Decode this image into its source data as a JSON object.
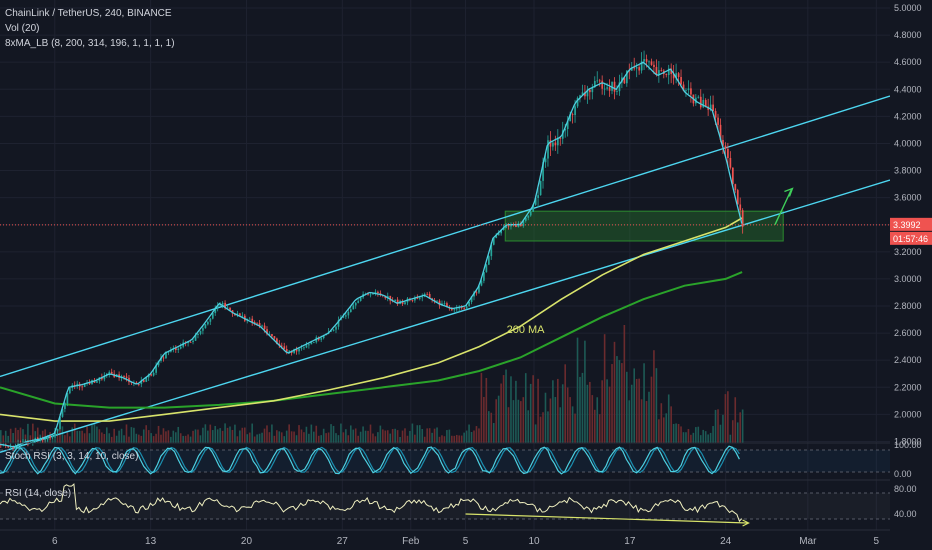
{
  "legend": {
    "main": "ChainLink / TetherUS, 240, BINANCE",
    "vol": "Vol (20)",
    "ma": "8xMA_LB (8, 200, 314, 196, 1, 1, 1, 1)",
    "stoch": "Stoch RSI (3, 3, 14, 10, close)",
    "rsi": "RSI (14, close)"
  },
  "price_badge": {
    "price": "3.3992",
    "countdown": "01:57:46"
  },
  "annotation": "200 MA",
  "colors": {
    "background": "#131722",
    "up": "#26a69a",
    "down": "#ef5350",
    "fast_ma": "#4dd0e1",
    "ma200": "#d8e36b",
    "ma314": "#2aa32a",
    "channel": "#4dd6f0",
    "zone": "#2b8a2f",
    "stoch_k": "#4dd0e1",
    "stoch_d": "#1a8fb0",
    "rsi": "#f0f0c0",
    "rsi_div": "#d8e36b",
    "arrow": "#3fcf5a",
    "price_line": "#ef5350"
  },
  "chart_data": {
    "type": "candlestick",
    "price_axis": {
      "range": [
        1.7,
        5.0
      ],
      "ticks": [
        "5.0000",
        "4.8000",
        "4.6000",
        "4.4000",
        "4.2000",
        "4.0000",
        "3.8000",
        "3.6000",
        "3.4000",
        "3.2000",
        "3.0000",
        "2.8000",
        "2.6000",
        "2.4000",
        "2.2000",
        "2.0000",
        "1.8000"
      ]
    },
    "time_axis": {
      "labels": [
        "6",
        "13",
        "20",
        "27",
        "Feb",
        "5",
        "10",
        "17",
        "24",
        "Mar",
        "5"
      ],
      "label_days": [
        6,
        13,
        20,
        27,
        32,
        36,
        41,
        48,
        55,
        61,
        66
      ],
      "range_days": [
        2,
        67
      ]
    },
    "close_path": [
      [
        2,
        1.78
      ],
      [
        3,
        1.76
      ],
      [
        4,
        1.8
      ],
      [
        5,
        1.82
      ],
      [
        6,
        1.86
      ],
      [
        7,
        2.2
      ],
      [
        8,
        2.22
      ],
      [
        9,
        2.25
      ],
      [
        10,
        2.3
      ],
      [
        11,
        2.27
      ],
      [
        12,
        2.22
      ],
      [
        13,
        2.3
      ],
      [
        14,
        2.45
      ],
      [
        15,
        2.5
      ],
      [
        16,
        2.55
      ],
      [
        17,
        2.68
      ],
      [
        18,
        2.82
      ],
      [
        19,
        2.75
      ],
      [
        20,
        2.7
      ],
      [
        21,
        2.65
      ],
      [
        22,
        2.55
      ],
      [
        23,
        2.45
      ],
      [
        24,
        2.5
      ],
      [
        25,
        2.55
      ],
      [
        26,
        2.6
      ],
      [
        27,
        2.72
      ],
      [
        28,
        2.85
      ],
      [
        29,
        2.9
      ],
      [
        30,
        2.88
      ],
      [
        31,
        2.82
      ],
      [
        32,
        2.85
      ],
      [
        33,
        2.88
      ],
      [
        34,
        2.82
      ],
      [
        35,
        2.78
      ],
      [
        36,
        2.8
      ],
      [
        37,
        2.95
      ],
      [
        38,
        3.3
      ],
      [
        39,
        3.4
      ],
      [
        40,
        3.4
      ],
      [
        41,
        3.55
      ],
      [
        42,
        4.0
      ],
      [
        43,
        4.05
      ],
      [
        44,
        4.3
      ],
      [
        45,
        4.4
      ],
      [
        46,
        4.45
      ],
      [
        47,
        4.4
      ],
      [
        48,
        4.55
      ],
      [
        49,
        4.6
      ],
      [
        50,
        4.5
      ],
      [
        51,
        4.55
      ],
      [
        52,
        4.38
      ],
      [
        53,
        4.3
      ],
      [
        54,
        4.25
      ],
      [
        55,
        3.9
      ],
      [
        55.7,
        3.6
      ],
      [
        56.2,
        3.4
      ]
    ],
    "ma200": [
      [
        2,
        2.0
      ],
      [
        6,
        1.95
      ],
      [
        10,
        1.95
      ],
      [
        14,
        2.0
      ],
      [
        18,
        2.05
      ],
      [
        22,
        2.1
      ],
      [
        26,
        2.18
      ],
      [
        30,
        2.27
      ],
      [
        34,
        2.38
      ],
      [
        37,
        2.5
      ],
      [
        40,
        2.65
      ],
      [
        43,
        2.85
      ],
      [
        46,
        3.03
      ],
      [
        49,
        3.18
      ],
      [
        52,
        3.28
      ],
      [
        55,
        3.38
      ],
      [
        56.2,
        3.45
      ]
    ],
    "ma314": [
      [
        2,
        2.2
      ],
      [
        6,
        2.08
      ],
      [
        10,
        2.05
      ],
      [
        14,
        2.05
      ],
      [
        18,
        2.07
      ],
      [
        22,
        2.1
      ],
      [
        26,
        2.15
      ],
      [
        30,
        2.2
      ],
      [
        34,
        2.25
      ],
      [
        37,
        2.32
      ],
      [
        40,
        2.42
      ],
      [
        43,
        2.57
      ],
      [
        46,
        2.72
      ],
      [
        49,
        2.85
      ],
      [
        52,
        2.95
      ],
      [
        55,
        3.0
      ],
      [
        56.2,
        3.05
      ]
    ],
    "channel_upper": [
      [
        2,
        2.28
      ],
      [
        67,
        4.35
      ]
    ],
    "channel_lower": [
      [
        2,
        1.72
      ],
      [
        67,
        3.73
      ]
    ],
    "demand_zone": {
      "days": [
        38.9,
        59.2
      ],
      "price": [
        3.28,
        3.5
      ]
    },
    "projection_arrow": [
      [
        58.6,
        3.4
      ],
      [
        59.8,
        3.66
      ]
    ],
    "current_price": 3.3992,
    "stoch_rsi": {
      "levels": [
        0,
        20,
        80,
        100
      ],
      "ticks": [
        "100.00",
        "0.00"
      ]
    },
    "rsi": {
      "levels": [
        30,
        70
      ],
      "ticks": [
        "80.00",
        "40.00"
      ]
    }
  }
}
